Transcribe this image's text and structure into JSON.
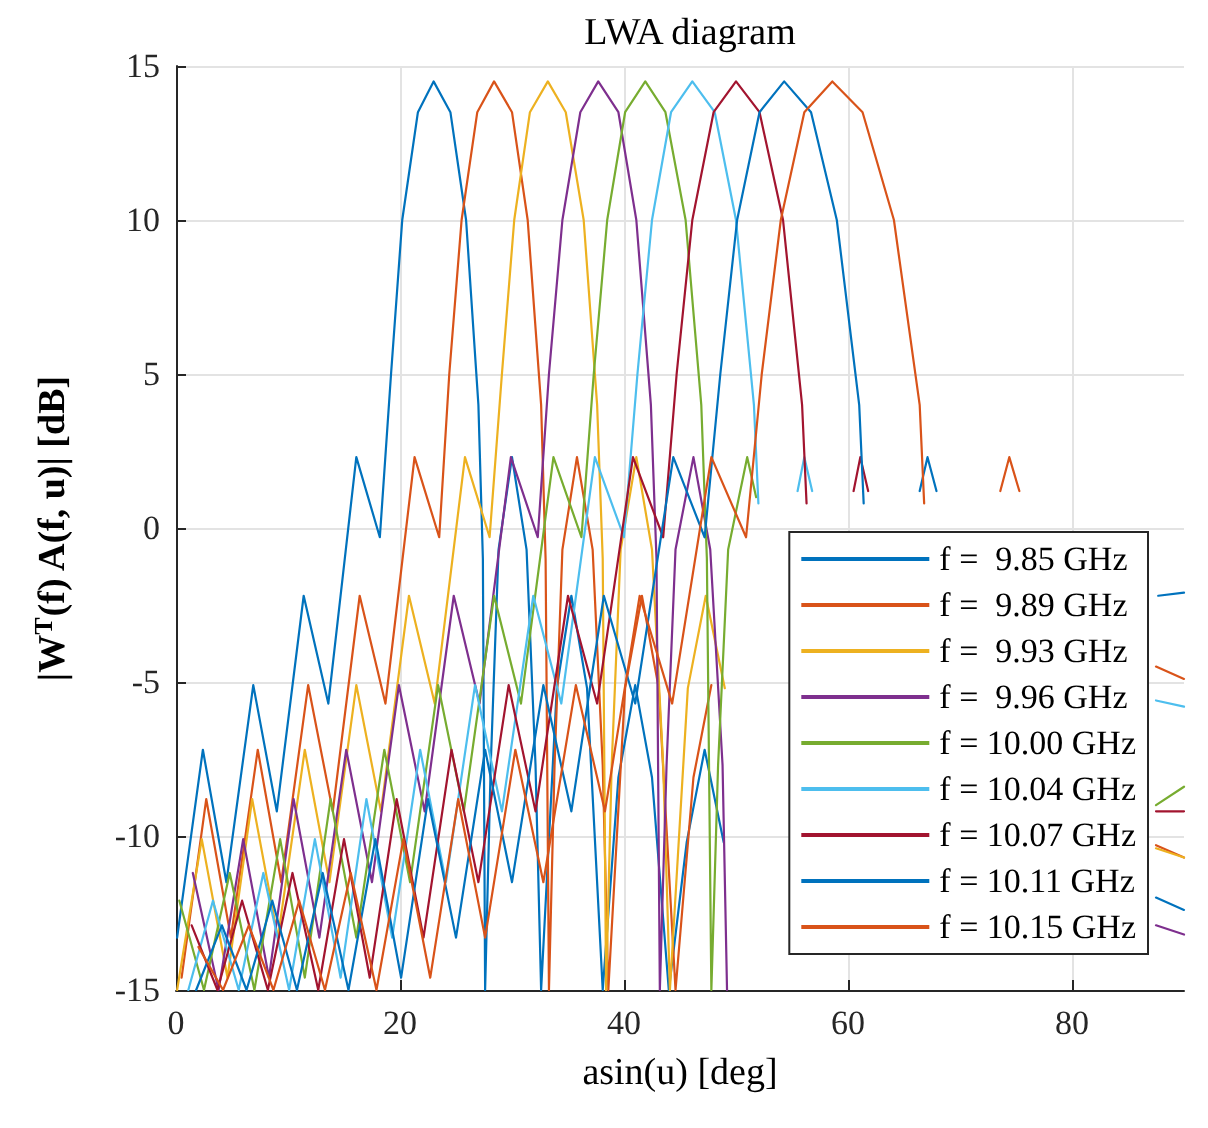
{
  "chart_data": {
    "type": "line",
    "title": "LWA diagram",
    "xlabel": "asin(u) [deg]",
    "ylabel": "|W$^{T}$(f) A(f, u)| [dB]",
    "xlim": [
      0,
      90
    ],
    "xticks": [
      0,
      20,
      40,
      60,
      80
    ],
    "ylim": [
      -15,
      15
    ],
    "yticks": [
      -15,
      -10,
      -5,
      0,
      5,
      10,
      15
    ],
    "grid": true,
    "legend": "bottom right",
    "marker": "none",
    "line_style": "solid",
    "series": [
      {
        "name": "f =  9.85 GHz",
        "color": "#0072bd",
        "x": [
          0.1,
          2.4,
          4.5,
          6.9,
          9.0,
          11.4,
          13.6,
          16.1,
          18.2,
          19.2,
          20.2,
          21.6,
          23.0,
          24.5,
          25.9,
          27.0,
          27.4,
          27.6,
          28.1,
          28.8,
          30.0,
          31.3,
          32.1,
          32.6,
          34.0,
          35.3,
          36.7,
          38.1,
          39.5,
          41.0,
          42.5,
          44.0,
          45.6,
          47.2,
          48.9,
          49.0,
          87.5,
          90
        ],
        "values": [
          -13.3,
          -7.2,
          -11.5,
          -5.1,
          -9.2,
          -2.2,
          -5.7,
          2.3,
          -0.3,
          5,
          10,
          13.5,
          14.5,
          13.5,
          10,
          4,
          -1,
          -15,
          -7.7,
          -0.7,
          2.3,
          -0.7,
          -7.7,
          -15,
          -5.2,
          -2.2,
          -5.2,
          -15,
          -8.1,
          -5.1,
          -8.1,
          -15,
          -10.2,
          -7.2,
          -10.2,
          null,
          -12.0,
          -12.4
        ]
      },
      {
        "name": "f =  9.89 GHz",
        "color": "#d95319",
        "x": [
          0.5,
          2.7,
          4.9,
          7.3,
          9.4,
          11.8,
          14.0,
          16.4,
          18.7,
          21.3,
          23.5,
          24.4,
          25.5,
          26.9,
          28.4,
          30.0,
          31.4,
          32.6,
          33.0,
          33.3,
          33.8,
          34.5,
          35.8,
          37.2,
          38.1,
          38.6,
          40.1,
          41.6,
          43.1,
          44.6,
          46.2,
          47.8,
          47.9,
          87.5,
          90
        ],
        "values": [
          -14.6,
          -8.8,
          -13.3,
          -7.2,
          -11.5,
          -5.1,
          -9.2,
          -2.2,
          -5.7,
          2.3,
          -0.3,
          5,
          10,
          13.5,
          14.5,
          13.5,
          10,
          4,
          -1,
          -15,
          -7.7,
          -0.7,
          2.3,
          -0.7,
          -7.7,
          -15,
          -5.2,
          -2.2,
          -5.2,
          -15,
          -8.1,
          -5.1,
          null,
          -10.3,
          -10.7
        ]
      },
      {
        "name": "f =  9.93 GHz",
        "color": "#edb120",
        "x": [
          0.1,
          2.3,
          4.6,
          6.8,
          9.1,
          11.5,
          13.7,
          16.1,
          18.3,
          20.8,
          23.1,
          25.8,
          28.0,
          29.1,
          30.2,
          31.6,
          33.2,
          34.8,
          36.4,
          37.6,
          38.1,
          38.4,
          38.9,
          39.7,
          41.1,
          42.5,
          43.5,
          44.1,
          45.7,
          47.3,
          49.0,
          49.1,
          87.5,
          90
        ],
        "values": [
          -15,
          -10.1,
          -14.6,
          -8.8,
          -13.3,
          -7.2,
          -11.5,
          -5.1,
          -9.2,
          -2.2,
          -5.7,
          2.3,
          -0.3,
          5,
          10,
          13.5,
          14.5,
          13.5,
          10,
          4,
          -1,
          -15,
          -7.7,
          -0.7,
          2.3,
          -0.7,
          -7.7,
          -15,
          -5.2,
          -2.2,
          -5.2,
          null,
          -10.4,
          -10.7
        ]
      },
      {
        "name": "f =  9.96 GHz",
        "color": "#7e2f8e",
        "x": [
          1.5,
          3.8,
          6.0,
          8.3,
          10.5,
          12.8,
          15.2,
          17.5,
          19.9,
          22.2,
          24.8,
          27.1,
          29.9,
          32.3,
          33.3,
          34.5,
          36.1,
          37.7,
          39.5,
          41.1,
          42.4,
          42.9,
          43.2,
          43.8,
          44.6,
          46.2,
          47.7,
          48.8,
          49.2,
          49.3,
          87.5,
          90
        ],
        "values": [
          -11.2,
          -15,
          -10.1,
          -14.6,
          -8.8,
          -13.3,
          -7.2,
          -11.5,
          -5.1,
          -9.2,
          -2.2,
          -5.7,
          2.3,
          -0.3,
          5,
          10,
          13.5,
          14.5,
          13.5,
          10,
          4,
          -1,
          -15,
          -7.7,
          -0.7,
          2.3,
          -0.7,
          -7.7,
          -15,
          null,
          -12.9,
          -13.2
        ]
      },
      {
        "name": "f = 10.00 GHz",
        "color": "#77ac30",
        "x": [
          0.3,
          2.5,
          4.8,
          7.0,
          9.3,
          11.5,
          13.8,
          16.1,
          18.6,
          20.9,
          23.4,
          25.7,
          28.4,
          30.8,
          33.7,
          36.2,
          37.3,
          38.5,
          40.1,
          41.9,
          43.7,
          45.5,
          46.9,
          47.4,
          47.8,
          48.4,
          49.3,
          51.0,
          51.8,
          51.9,
          87.5,
          90
        ],
        "values": [
          -12.1,
          -15,
          -11.2,
          -15,
          -10.1,
          -14.6,
          -8.8,
          -13.3,
          -7.2,
          -11.5,
          -5.1,
          -9.2,
          -2.2,
          -5.7,
          2.3,
          -0.3,
          5,
          10,
          13.5,
          14.5,
          13.5,
          10,
          4,
          -1,
          -15,
          -7.7,
          -0.7,
          2.3,
          1.0,
          null,
          -9.0,
          -8.4
        ]
      },
      {
        "name": "f = 10.04 GHz",
        "color": "#4dbeee",
        "x": [
          1.1,
          3.3,
          5.6,
          7.8,
          10.1,
          12.4,
          14.7,
          17.0,
          19.3,
          21.8,
          24.1,
          26.7,
          29.1,
          31.9,
          34.4,
          37.4,
          40.0,
          41.2,
          42.5,
          44.2,
          46.1,
          48.1,
          50.0,
          51.6,
          52.0,
          52.1,
          55.5,
          56.1,
          56.8,
          56.9,
          87.5,
          90
        ],
        "values": [
          -15,
          -12.1,
          -15,
          -11.2,
          -15,
          -10.1,
          -14.6,
          -8.8,
          -13.3,
          -7.2,
          -11.5,
          -5.1,
          -9.2,
          -2.2,
          -5.7,
          2.3,
          -0.3,
          5,
          10,
          13.5,
          14.5,
          13.5,
          10,
          4,
          0.8,
          null,
          1.2,
          2.3,
          1.2,
          null,
          -5.6,
          -5.8
        ]
      },
      {
        "name": "f = 10.07 GHz",
        "color": "#a2142f",
        "x": [
          1.4,
          3.7,
          5.9,
          8.2,
          10.4,
          12.7,
          15.0,
          17.3,
          19.7,
          22.1,
          24.6,
          27.0,
          29.7,
          32.1,
          35.0,
          37.6,
          40.8,
          43.5,
          44.7,
          46.1,
          48.0,
          50.0,
          52.1,
          54.2,
          55.9,
          56.3,
          56.4,
          60.5,
          61.1,
          61.8,
          61.9,
          87.5,
          90
        ],
        "values": [
          -12.9,
          -15,
          -12.1,
          -15,
          -11.2,
          -15,
          -10.1,
          -14.6,
          -8.8,
          -13.3,
          -7.2,
          -11.5,
          -5.1,
          -9.2,
          -2.2,
          -5.7,
          2.3,
          -0.3,
          5,
          10,
          13.5,
          14.5,
          13.5,
          10,
          4,
          0.8,
          null,
          1.2,
          2.3,
          1.2,
          null,
          -9.2,
          -9.2
        ]
      },
      {
        "name": "f = 10.11 GHz",
        "color": "#0072bd",
        "x": [
          1.8,
          4.1,
          6.3,
          8.6,
          10.8,
          13.1,
          15.4,
          17.8,
          20.1,
          22.5,
          25.0,
          27.6,
          30.0,
          32.8,
          35.3,
          38.2,
          41.0,
          44.4,
          47.2,
          48.6,
          50.1,
          52.1,
          54.3,
          56.7,
          59.0,
          61.0,
          61.4,
          61.5,
          66.4,
          67.1,
          67.9,
          68.0,
          87.7,
          90
        ],
        "values": [
          -15,
          -12.9,
          -15,
          -12.1,
          -15,
          -11.2,
          -15,
          -10.1,
          -14.6,
          -8.8,
          -13.3,
          -7.2,
          -11.5,
          -5.1,
          -9.2,
          -2.2,
          -5.7,
          2.3,
          -0.3,
          5,
          10,
          13.5,
          14.5,
          13.5,
          10,
          4,
          0.8,
          null,
          1.2,
          2.3,
          1.2,
          null,
          -2.2,
          -2.1
        ]
      },
      {
        "name": "f = 10.15 GHz",
        "color": "#d95319",
        "x": [
          2.0,
          4.2,
          6.5,
          8.7,
          11.0,
          13.3,
          15.6,
          17.9,
          20.3,
          22.7,
          25.2,
          27.6,
          30.3,
          32.8,
          35.7,
          38.3,
          41.4,
          44.3,
          47.8,
          50.9,
          52.3,
          54.0,
          56.1,
          58.6,
          61.3,
          64.1,
          66.4,
          66.8,
          66.9,
          73.6,
          74.4,
          75.3,
          75.4,
          87.5,
          90
        ],
        "values": [
          -13.6,
          -15,
          -12.9,
          -15,
          -12.1,
          -15,
          -11.2,
          -15,
          -10.1,
          -14.6,
          -8.8,
          -13.3,
          -7.2,
          -11.5,
          -5.1,
          -9.2,
          -2.2,
          -5.7,
          2.3,
          -0.3,
          5,
          10,
          13.5,
          14.5,
          13.5,
          10,
          4,
          0.8,
          null,
          1.2,
          2.3,
          1.2,
          null,
          -4.5,
          -4.9
        ]
      }
    ]
  }
}
